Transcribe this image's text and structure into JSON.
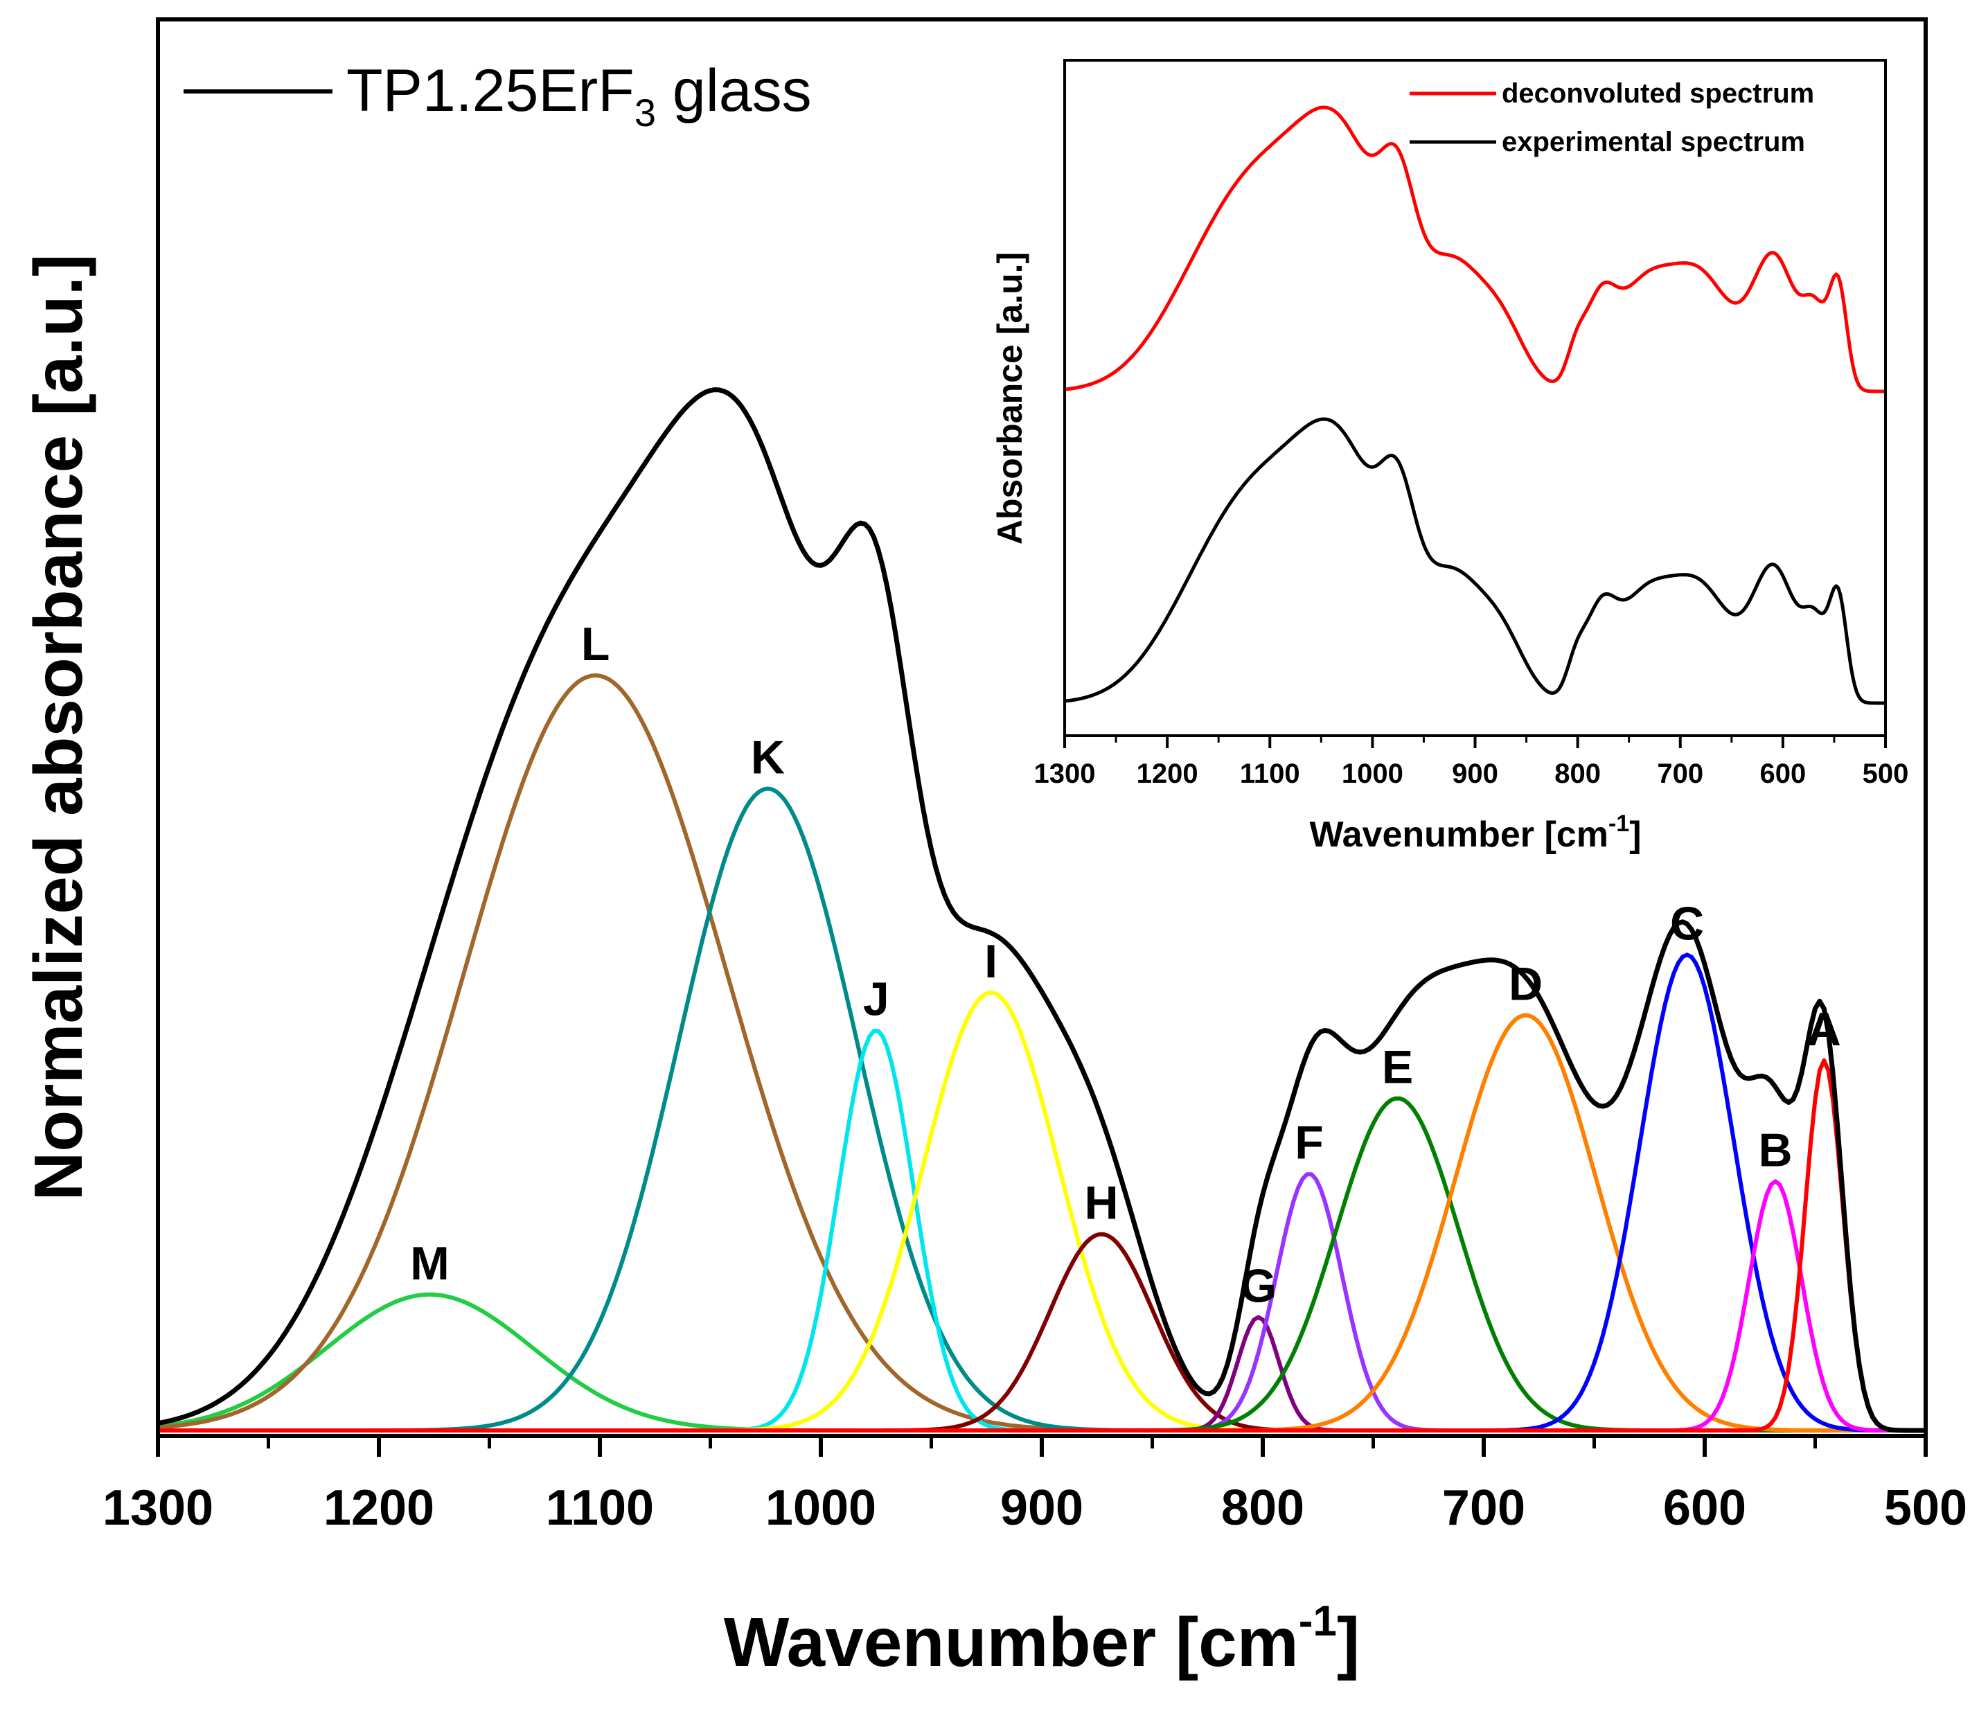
{
  "chart_data": {
    "type": "line",
    "title": "",
    "xlabel": "Wavenumber [cm",
    "xlabel_sup": "-1",
    "xlabel_close": "]",
    "ylabel": "Normalized absorbance [a.u.]",
    "xlim": [
      1300,
      500
    ],
    "ylim": [
      0,
      1.25
    ],
    "x_ticks": [
      1300,
      1200,
      1100,
      1000,
      900,
      800,
      700,
      600,
      500
    ],
    "legend": {
      "text": "TP1.25ErF",
      "sub": "3",
      "suffix": " glass",
      "color": "#000000",
      "position": "top-left"
    },
    "total_color": "#000000",
    "components": [
      {
        "label": "A",
        "center": 546,
        "amplitude": 0.49,
        "fwhm": 20,
        "color": "#ff0000"
      },
      {
        "label": "B",
        "center": 568,
        "amplitude": 0.33,
        "fwhm": 28,
        "color": "#ff00ff"
      },
      {
        "label": "C",
        "center": 608,
        "amplitude": 0.63,
        "fwhm": 50,
        "color": "#0000ff"
      },
      {
        "label": "D",
        "center": 681,
        "amplitude": 0.55,
        "fwhm": 75,
        "color": "#ff8000"
      },
      {
        "label": "E",
        "center": 739,
        "amplitude": 0.44,
        "fwhm": 65,
        "color": "#008000"
      },
      {
        "label": "F",
        "center": 779,
        "amplitude": 0.34,
        "fwhm": 35,
        "color": "#9933ff"
      },
      {
        "label": "G",
        "center": 802,
        "amplitude": 0.15,
        "fwhm": 22,
        "color": "#800080"
      },
      {
        "label": "H",
        "center": 873,
        "amplitude": 0.26,
        "fwhm": 55,
        "color": "#800000"
      },
      {
        "label": "I",
        "center": 923,
        "amplitude": 0.58,
        "fwhm": 72,
        "color": "#ffff00"
      },
      {
        "label": "J",
        "center": 975,
        "amplitude": 0.53,
        "fwhm": 40,
        "color": "#00e5ee"
      },
      {
        "label": "K",
        "center": 1024,
        "amplitude": 0.85,
        "fwhm": 95,
        "color": "#008b8b"
      },
      {
        "label": "L",
        "center": 1102,
        "amplitude": 1.0,
        "fwhm": 140,
        "color": "#a0662a"
      },
      {
        "label": "M",
        "center": 1177,
        "amplitude": 0.18,
        "fwhm": 110,
        "color": "#22cc44"
      }
    ],
    "inset": {
      "type": "line",
      "xlabel": "Wavenumber [cm",
      "xlabel_sup": "-1",
      "xlabel_close": "]",
      "ylabel": "Absorbance [a.u.]",
      "xlim": [
        1300,
        500
      ],
      "x_ticks": [
        1300,
        1200,
        1100,
        1000,
        900,
        800,
        700,
        600,
        500
      ],
      "series": [
        {
          "name": "deconvoluted spectrum",
          "color": "#ff0000",
          "offset": 1.0
        },
        {
          "name": "experimental spectrum",
          "color": "#000000",
          "offset": 0.0
        }
      ]
    }
  }
}
